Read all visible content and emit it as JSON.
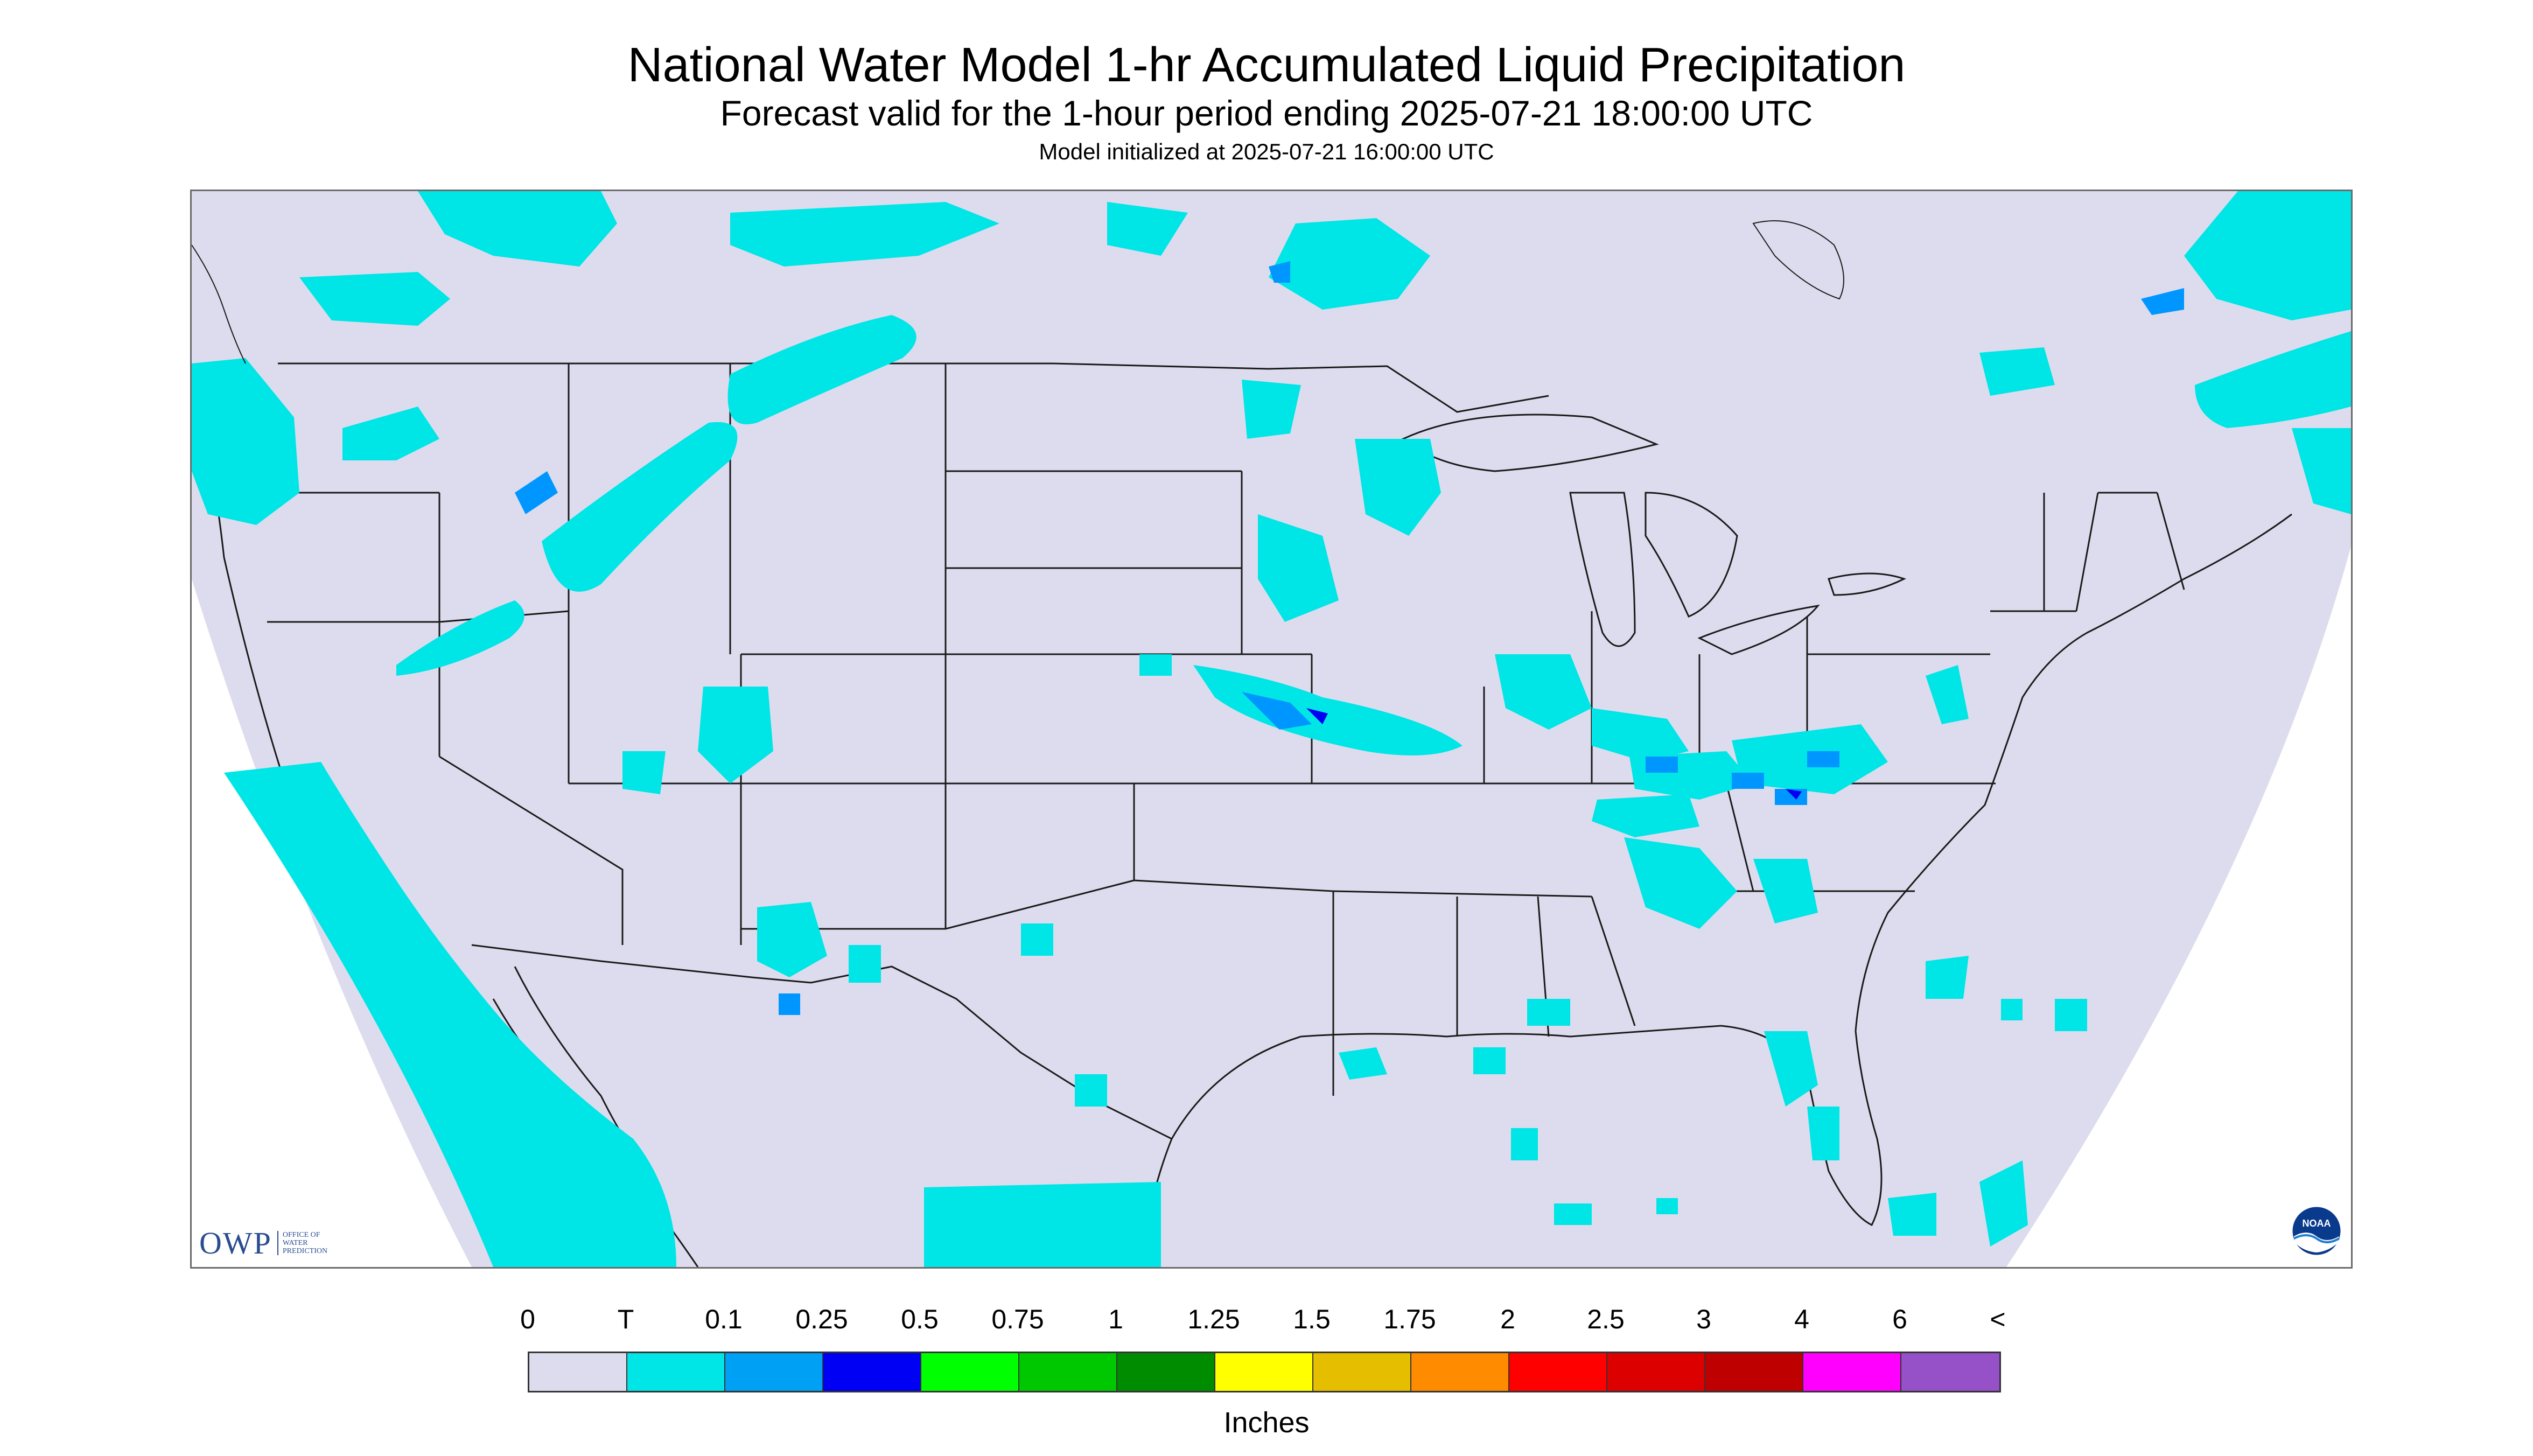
{
  "header": {
    "title": "National Water Model 1-hr Accumulated Liquid Precipitation",
    "subtitle": "Forecast valid for the 1-hour period ending 2025-07-21 18:00:00 UTC",
    "init": "Model initialized at 2025-07-21 16:00:00 UTC"
  },
  "map": {
    "background_color": "#dcdcee",
    "outside_color": "#ffffff",
    "precip_color_trace": "#00e5e5",
    "precip_color_light": "#0096ff",
    "precip_color_heavy": "#0000ff",
    "boundary_color": "#1a1a1a",
    "coverage": "Continental United States with parts of Canada, Mexico, Gulf of Mexico and Atlantic"
  },
  "logos": {
    "owp_text": "OWP",
    "owp_sub": "OFFICE OF\nWATER\nPREDICTION",
    "noaa_text": "NOAA"
  },
  "legend": {
    "labels": [
      "0",
      "T",
      "0.1",
      "0.25",
      "0.5",
      "0.75",
      "1",
      "1.25",
      "1.5",
      "1.75",
      "2",
      "2.5",
      "3",
      "4",
      "6",
      "<"
    ],
    "colors": [
      "#dcdcee",
      "#00e5e5",
      "#00a0f5",
      "#0000f5",
      "#00ff00",
      "#00c800",
      "#008c00",
      "#ffff00",
      "#e6be00",
      "#ff8c00",
      "#ff0000",
      "#dc0000",
      "#be0000",
      "#ff00ff",
      "#9650c8"
    ],
    "units": "Inches"
  }
}
